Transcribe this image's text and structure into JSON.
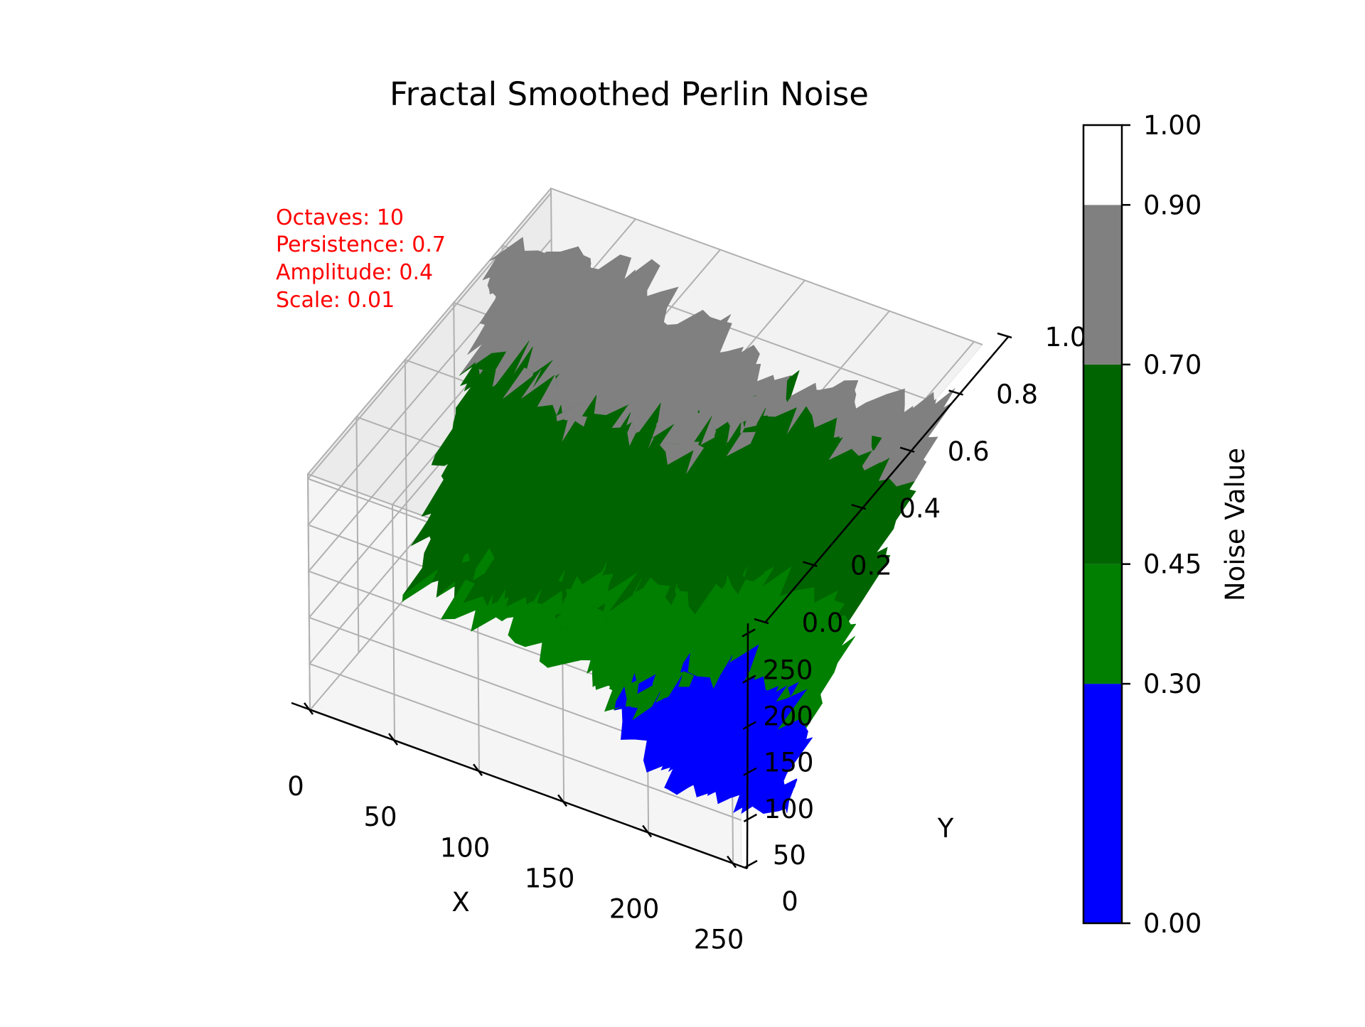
{
  "chart_data": {
    "type": "surface3d",
    "title": "Fractal Smoothed Perlin Noise",
    "xlabel": "X",
    "ylabel": "Y",
    "zlabel": "",
    "xlim": [
      0,
      255
    ],
    "ylim": [
      0,
      255
    ],
    "zlim": [
      0,
      1
    ],
    "x_ticks": [
      "0",
      "50",
      "100",
      "150",
      "200",
      "250"
    ],
    "y_ticks": [
      "0",
      "50",
      "100",
      "150",
      "200",
      "250"
    ],
    "z_ticks": [
      "0.0",
      "0.2",
      "0.4",
      "0.6",
      "0.8",
      "1.0"
    ],
    "grid": true,
    "annotation": {
      "lines": [
        "Octaves: 10",
        "Persistence: 0.7",
        "Amplitude: 0.4",
        "Scale: 0.01"
      ],
      "color": "#ff0000"
    },
    "colorbar": {
      "label": "Noise Value",
      "tick_labels": [
        "0.00",
        "0.30",
        "0.45",
        "0.70",
        "0.90",
        "1.00"
      ],
      "bounds": [
        0.0,
        0.3,
        0.45,
        0.7,
        0.9,
        1.0
      ],
      "colors": [
        "#0000ff",
        "#007f00",
        "#006400",
        "#808080",
        "#ffffff"
      ]
    },
    "surface_samples": {
      "x": [
        0,
        32,
        64,
        96,
        128,
        160,
        192,
        224,
        255
      ],
      "y": [
        0,
        32,
        64,
        96,
        128,
        160,
        192,
        224,
        255
      ],
      "z_rows_by_y": [
        [
          0.44,
          0.46,
          0.45,
          0.4,
          0.34,
          0.26,
          0.18,
          0.16,
          0.2
        ],
        [
          0.46,
          0.47,
          0.48,
          0.42,
          0.36,
          0.3,
          0.22,
          0.18,
          0.22
        ],
        [
          0.5,
          0.5,
          0.5,
          0.46,
          0.42,
          0.36,
          0.28,
          0.24,
          0.28
        ],
        [
          0.56,
          0.56,
          0.6,
          0.55,
          0.5,
          0.44,
          0.36,
          0.32,
          0.36
        ],
        [
          0.62,
          0.62,
          0.7,
          0.66,
          0.62,
          0.56,
          0.46,
          0.42,
          0.48
        ],
        [
          0.66,
          0.7,
          0.76,
          0.72,
          0.7,
          0.66,
          0.56,
          0.52,
          0.6
        ],
        [
          0.7,
          0.76,
          0.78,
          0.74,
          0.74,
          0.7,
          0.62,
          0.62,
          0.72
        ],
        [
          0.74,
          0.8,
          0.82,
          0.78,
          0.76,
          0.72,
          0.66,
          0.7,
          0.78
        ],
        [
          0.76,
          0.82,
          0.86,
          0.8,
          0.78,
          0.74,
          0.68,
          0.74,
          0.82
        ]
      ]
    }
  }
}
